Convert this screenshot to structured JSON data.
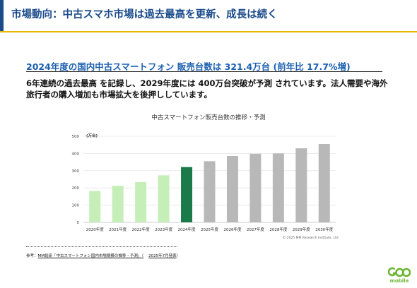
{
  "header": {
    "title": "市場動向：中古スマホ市場は過去最高を更新、成長は続く"
  },
  "headline": "2024年度の国内中古スマートフォン 販売台数は 321.4万台 (前年比 17.7%増)",
  "body": "6年連続の過去最高 を記録し、2029年度には 400万台突破が予測 されています。法人需要や海外旅行者の購入増加も市場拡大を後押ししています。",
  "chart_data": {
    "type": "bar",
    "title": "中古スマートフォン販売台数の推移・予測",
    "ylabel": "(万台)",
    "ylim": [
      0,
      500
    ],
    "yticks": [
      0,
      100,
      200,
      300,
      400,
      500
    ],
    "categories": [
      "2020年度",
      "2021年度",
      "2022年度",
      "2023年度",
      "2024年度",
      "2025年度",
      "2026年度",
      "2027年度",
      "2028年度",
      "2029年度",
      "2030年度"
    ],
    "values": [
      182,
      212,
      234,
      273,
      321,
      355,
      385,
      398,
      400,
      430,
      455
    ],
    "actual_color": "#c5eeb8",
    "highlight_color": "#1a7a4a",
    "forecast_color": "#b8b8b8",
    "highlight_index": 4,
    "forecast_from_index": 5,
    "copyright": "© 2025 MM Research Institute, Ltd."
  },
  "note": {
    "prefix": "参考：",
    "source": "MM総研「中古スマートフォン国内市場規模の推移・予測」（",
    "date": "2025年7月発表",
    "suffix": "）"
  },
  "logo": {
    "sub": "mobile",
    "icon": "geo-logo-icon",
    "color": "#6ab430"
  }
}
